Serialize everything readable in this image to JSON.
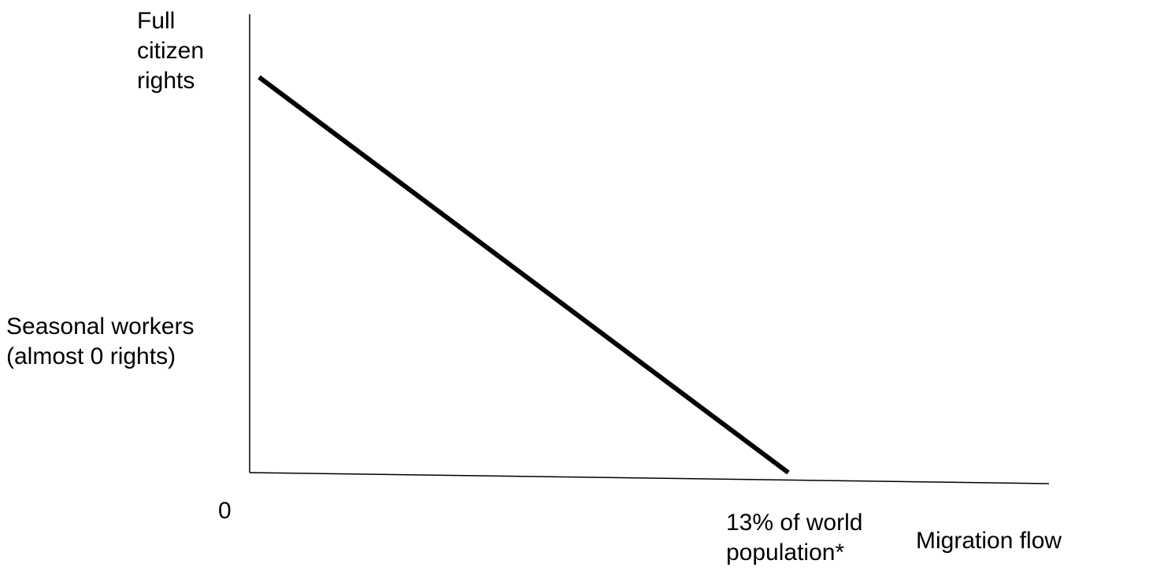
{
  "diagram": {
    "y_axis": {
      "top_label": [
        "Full",
        "citizen",
        "rights"
      ],
      "mid_label": [
        "Seasonal workers",
        "(almost 0 rights)"
      ]
    },
    "x_axis": {
      "origin_label": "0",
      "mark_label": [
        "13% of world",
        "population*"
      ],
      "title": "Migration flow"
    },
    "line": {
      "color": "#000000",
      "from": "Full citizen rights at 0",
      "to": "0 rights at 13% of world population"
    }
  }
}
